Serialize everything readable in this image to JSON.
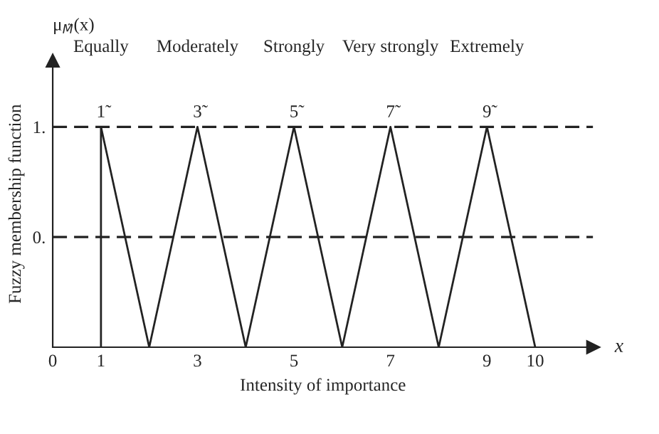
{
  "chart_data": {
    "type": "line",
    "xlabel": "Intensity of importance",
    "ylabel": "Fuzzy membership function",
    "series": [
      {
        "color": "#222222",
        "x": [
          1,
          1,
          2,
          3,
          4,
          5,
          6,
          7,
          8,
          9,
          10
        ],
        "values": [
          0,
          1,
          0,
          1,
          0,
          1,
          0,
          1,
          0,
          1,
          0
        ]
      }
    ],
    "xlim": [
      0,
      11.2
    ],
    "ylim": [
      0,
      1.3
    ],
    "xticks": [
      0,
      1,
      3,
      5,
      7,
      9,
      10
    ],
    "yticks": [
      {
        "value": 0.5,
        "label": "0."
      },
      {
        "value": 1,
        "label": "1."
      }
    ],
    "ref_lines": [
      {
        "axis": "y",
        "value": 1,
        "color": "#222222",
        "line_style": "dashed"
      },
      {
        "axis": "y",
        "value": 0.5,
        "color": "#222222",
        "line_style": "dashed"
      }
    ],
    "annotations": [
      "Equally",
      "Moderately",
      "Strongly",
      "Very strongly",
      "Extremely",
      {
        "text": "1̃",
        "x": 1,
        "y": 1
      },
      {
        "text": "3̃",
        "x": 3,
        "y": 1
      },
      {
        "text": "5̃",
        "x": 5,
        "y": 1
      },
      {
        "text": "7̃",
        "x": 7,
        "y": 1
      },
      {
        "text": "9̃",
        "x": 9,
        "y": 1
      },
      "μ$_{M̃}$(x)",
      "x"
    ],
    "grid": false,
    "legend": false,
    "marker": "none",
    "line_style": "solid"
  }
}
